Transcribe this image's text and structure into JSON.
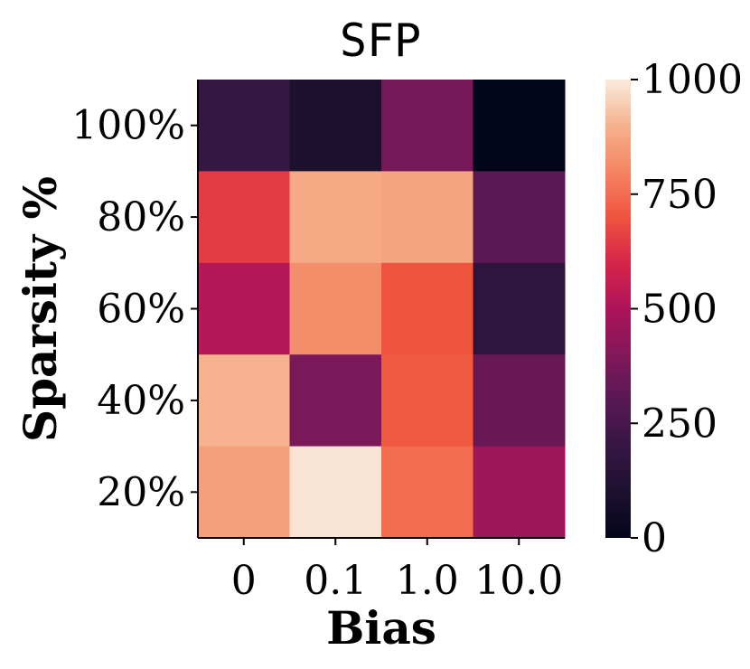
{
  "chart_data": {
    "type": "heatmap",
    "title": "SFP",
    "xlabel": "Bias",
    "ylabel": "Sparsity %",
    "x_categories": [
      "0",
      "0.1",
      "1.0",
      "10.0"
    ],
    "y_categories": [
      "100%",
      "80%",
      "60%",
      "40%",
      "20%"
    ],
    "values": [
      [
        200,
        100,
        370,
        0
      ],
      [
        650,
        880,
        870,
        310
      ],
      [
        520,
        820,
        700,
        170
      ],
      [
        900,
        380,
        710,
        340
      ],
      [
        860,
        990,
        750,
        460
      ]
    ],
    "colorbar": {
      "min": 0,
      "max": 1000,
      "ticks": [
        "0",
        "250",
        "500",
        "750",
        "1000"
      ],
      "tick_values": [
        0,
        250,
        500,
        750,
        1000
      ],
      "colormap": "rocket"
    }
  }
}
